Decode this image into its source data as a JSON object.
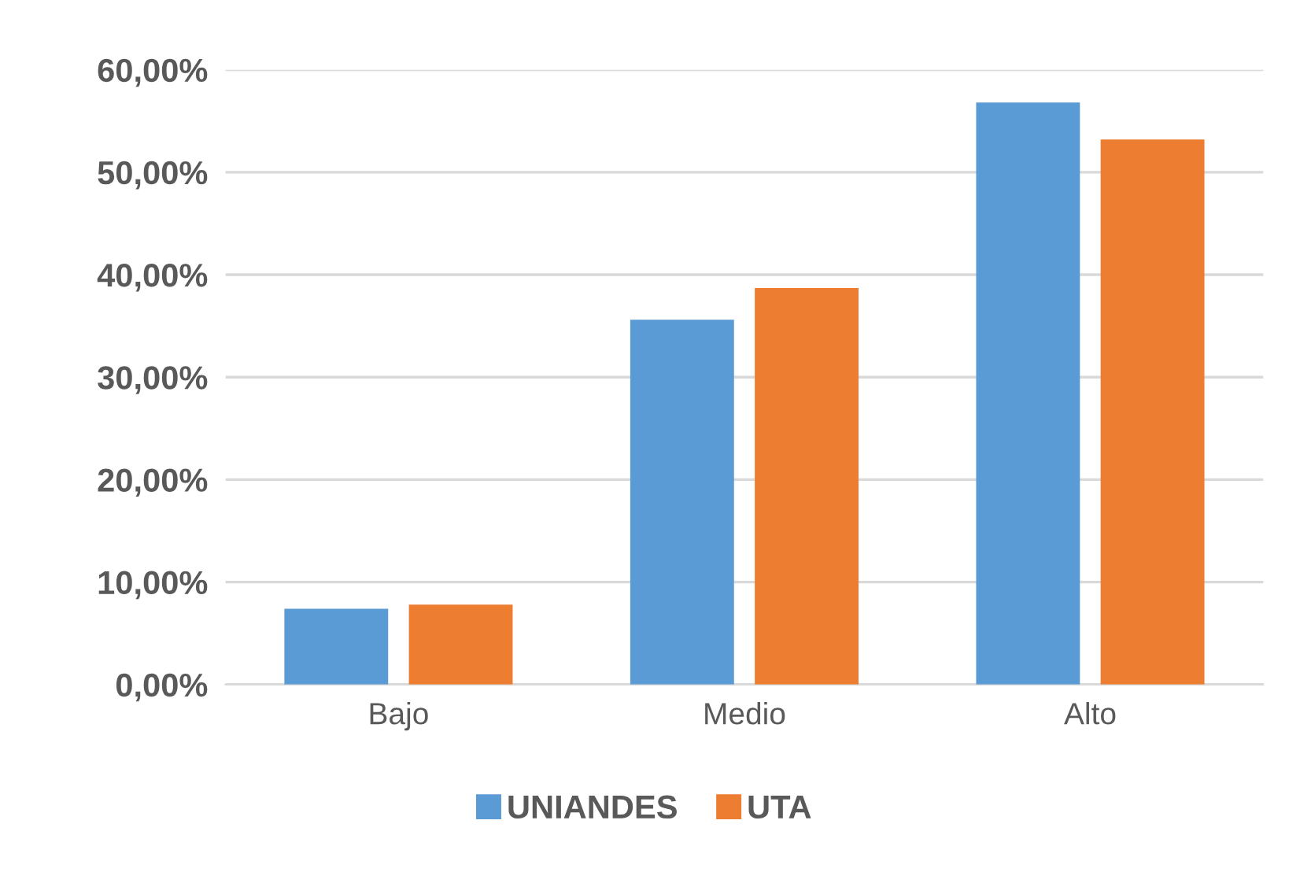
{
  "chart_data": {
    "type": "bar",
    "categories": [
      "Bajo",
      "Medio",
      "Alto"
    ],
    "series": [
      {
        "name": "UNIANDES",
        "color": "#5b9bd5",
        "values": [
          7.4,
          35.6,
          56.8
        ]
      },
      {
        "name": "UTA",
        "color": "#ed7d31",
        "values": [
          7.8,
          38.7,
          53.2
        ]
      }
    ],
    "ylim": [
      0,
      60
    ],
    "yticks": [
      {
        "value": 0,
        "label": "0,00%"
      },
      {
        "value": 10,
        "label": "10,00%"
      },
      {
        "value": 20,
        "label": "20,00%"
      },
      {
        "value": 30,
        "label": "30,00%"
      },
      {
        "value": 40,
        "label": "40,00%"
      },
      {
        "value": 50,
        "label": "50,00%"
      },
      {
        "value": 60,
        "label": "60,00%"
      }
    ],
    "grid": "y",
    "legend": "bottom"
  }
}
